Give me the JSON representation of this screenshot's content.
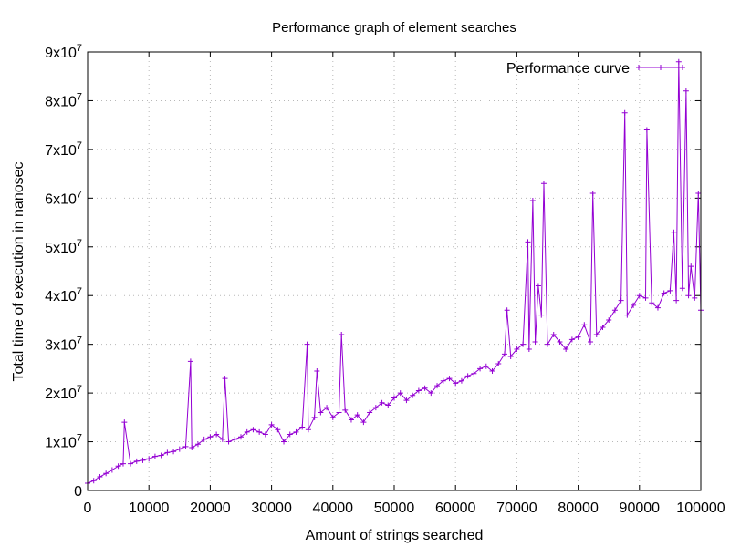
{
  "chart_data": {
    "type": "line",
    "title": "Performance graph of element searches",
    "xlabel": "Amount of strings searched",
    "ylabel": "Total time of execution in nanosec",
    "xlim": [
      0,
      100000
    ],
    "ylim": [
      0,
      90000000
    ],
    "x_ticks": [
      0,
      10000,
      20000,
      30000,
      40000,
      50000,
      60000,
      70000,
      80000,
      90000,
      100000
    ],
    "x_tick_labels": [
      "0",
      "10000",
      "20000",
      "30000",
      "40000",
      "50000",
      "60000",
      "70000",
      "80000",
      "90000",
      "100000"
    ],
    "y_ticks": [
      0,
      10000000,
      20000000,
      30000000,
      40000000,
      50000000,
      60000000,
      70000000,
      80000000,
      90000000
    ],
    "y_tick_labels": [
      {
        "mantissa": "0",
        "exp": ""
      },
      {
        "mantissa": "1x10",
        "exp": "7"
      },
      {
        "mantissa": "2x10",
        "exp": "7"
      },
      {
        "mantissa": "3x10",
        "exp": "7"
      },
      {
        "mantissa": "4x10",
        "exp": "7"
      },
      {
        "mantissa": "5x10",
        "exp": "7"
      },
      {
        "mantissa": "6x10",
        "exp": "7"
      },
      {
        "mantissa": "7x10",
        "exp": "7"
      },
      {
        "mantissa": "8x10",
        "exp": "7"
      },
      {
        "mantissa": "9x10",
        "exp": "7"
      }
    ],
    "grid": true,
    "legend_position": "top-right",
    "color": "#9400d3",
    "marker": "plus",
    "series": [
      {
        "name": "Performance curve",
        "x": [
          0,
          1000,
          2000,
          3000,
          4000,
          5000,
          5800,
          6000,
          7000,
          8000,
          9000,
          10000,
          11000,
          12000,
          13000,
          14000,
          15000,
          16000,
          16800,
          17000,
          18000,
          19000,
          20000,
          21000,
          22000,
          22400,
          23000,
          24000,
          25000,
          26000,
          27000,
          28000,
          29000,
          30000,
          31000,
          32000,
          33000,
          34000,
          35000,
          35800,
          36000,
          37000,
          37400,
          38000,
          39000,
          40000,
          41000,
          41400,
          42000,
          43000,
          44000,
          45000,
          46000,
          47000,
          48000,
          49000,
          50000,
          51000,
          52000,
          53000,
          54000,
          55000,
          56000,
          57000,
          58000,
          59000,
          60000,
          61000,
          62000,
          63000,
          64000,
          65000,
          66000,
          67000,
          68000,
          68400,
          69000,
          70000,
          71000,
          71800,
          72000,
          72600,
          73000,
          73500,
          74000,
          74400,
          75000,
          76000,
          77000,
          78000,
          79000,
          80000,
          81000,
          82000,
          82400,
          83000,
          84000,
          85000,
          86000,
          87000,
          87600,
          88000,
          89000,
          90000,
          91000,
          91200,
          92000,
          93000,
          94000,
          95000,
          95600,
          96000,
          96400,
          97000,
          97600,
          98000,
          98400,
          99000,
          99600,
          100000
        ],
        "y": [
          1500000,
          2000000,
          2800000,
          3500000,
          4200000,
          5000000,
          5500000,
          14000000,
          5500000,
          6000000,
          6200000,
          6500000,
          7000000,
          7200000,
          7800000,
          8000000,
          8500000,
          9000000,
          26500000,
          8800000,
          9500000,
          10500000,
          11000000,
          11500000,
          10500000,
          23000000,
          10000000,
          10500000,
          11000000,
          12000000,
          12500000,
          12000000,
          11500000,
          13500000,
          12500000,
          10000000,
          11500000,
          12000000,
          13000000,
          30000000,
          12500000,
          15000000,
          24500000,
          16000000,
          17000000,
          15000000,
          16000000,
          32000000,
          16500000,
          14500000,
          15500000,
          14000000,
          16000000,
          17000000,
          18000000,
          17500000,
          19000000,
          20000000,
          18500000,
          19500000,
          20500000,
          21000000,
          20000000,
          21500000,
          22500000,
          23000000,
          22000000,
          22500000,
          23500000,
          24000000,
          25000000,
          25500000,
          24500000,
          26000000,
          28000000,
          37000000,
          27500000,
          29000000,
          30000000,
          51000000,
          29000000,
          59500000,
          30500000,
          42000000,
          36000000,
          63000000,
          30000000,
          32000000,
          30500000,
          29000000,
          31000000,
          31500000,
          34000000,
          30500000,
          61000000,
          32000000,
          33500000,
          35000000,
          37000000,
          39000000,
          77500000,
          36000000,
          38000000,
          40000000,
          39500000,
          74000000,
          38500000,
          37500000,
          40500000,
          41000000,
          53000000,
          39000000,
          88000000,
          41500000,
          82000000,
          40000000,
          46000000,
          39500000,
          61000000,
          37000000
        ]
      }
    ]
  }
}
